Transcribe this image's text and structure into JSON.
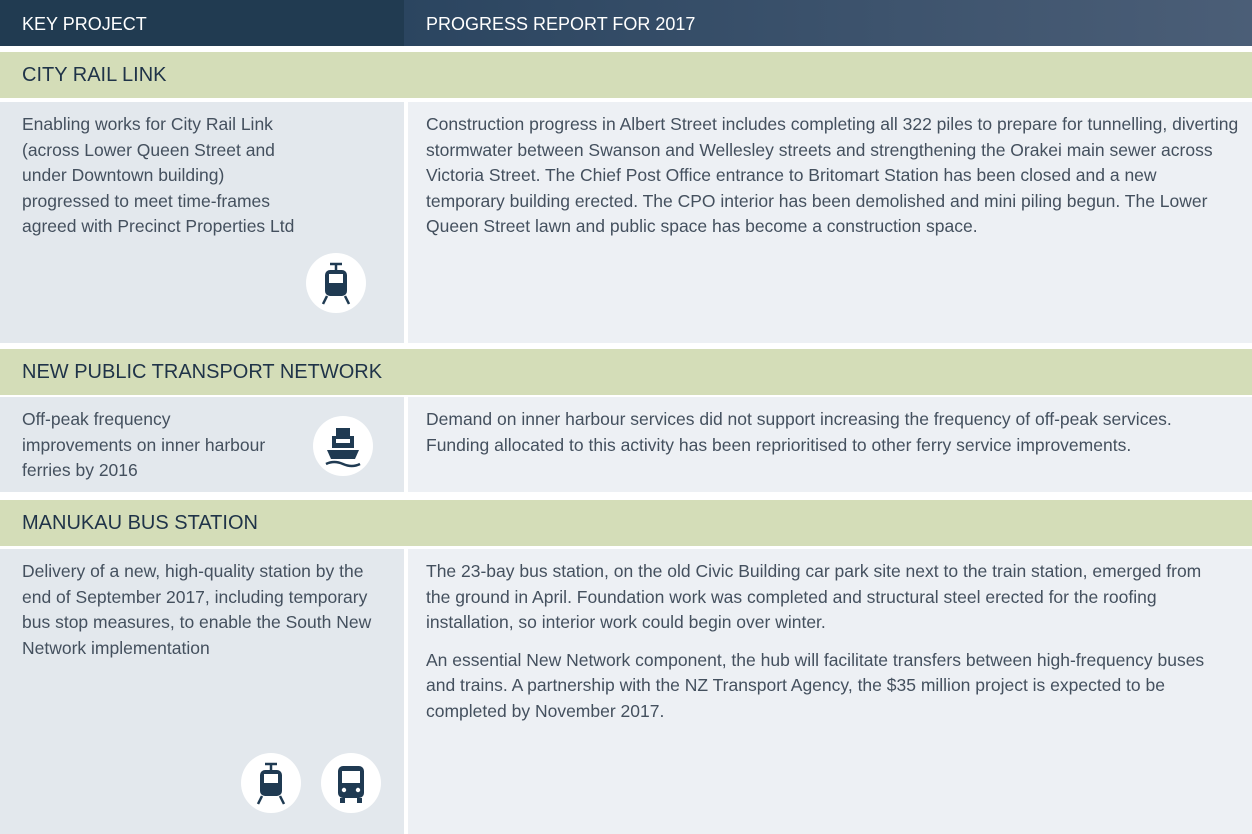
{
  "table": {
    "header": [
      "KEY PROJECT",
      "PROGRESS REPORT FOR 2017"
    ],
    "sections": [
      {
        "title": "CITY RAIL LINK",
        "project": "Enabling works for City Rail Link (across Lower Queen Street and under Downtown building) progressed to meet time-frames agreed with Precinct Properties Ltd",
        "report": [
          "Construction progress in Albert Street includes completing all 322 piles to prepare for tunnelling, diverting stormwater between Swanson and Wellesley streets and strengthening the Orakei main sewer across Victoria Street. The Chief Post Office entrance to Britomart Station has been closed and a new temporary building erected. The CPO interior has been demolished and mini piling begun. The Lower Queen Street lawn and public space has become a construction space."
        ]
      },
      {
        "title": "NEW PUBLIC TRANSPORT NETWORK",
        "project": "Off-peak frequency improvements on inner harbour ferries by 2016",
        "report": [
          "Demand on inner harbour services did not support increasing the frequency of off-peak services. Funding allocated to this activity has been reprioritised to other ferry service improvements."
        ]
      },
      {
        "title": "MANUKAU BUS STATION",
        "project": "Delivery of a new, high-quality station by the end of September 2017, including temporary bus stop measures, to enable the South New Network implementation",
        "report": [
          "The 23-bay bus station, on the old Civic Building car park site next to the train station, emerged from the ground in April. Foundation work was completed and structural steel erected for the roofing installation, so interior work could begin over winter.",
          "An essential New Network component, the hub will facilitate transfers between high-frequency buses and trains. A partnership with the NZ Transport Agency, the $35 million project is expected to be completed by November 2017."
        ]
      }
    ]
  }
}
